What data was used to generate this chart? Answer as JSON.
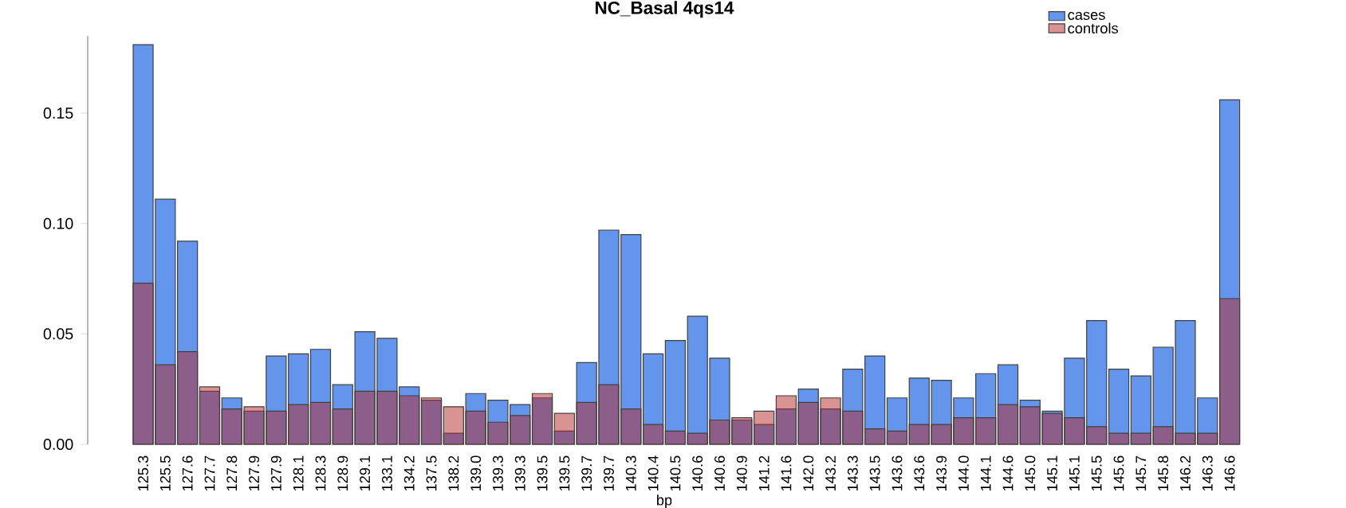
{
  "chart_data": {
    "type": "bar",
    "title": "NC_Basal 4qs14",
    "xlabel": "bp",
    "categories": [
      "125.3",
      "125.5",
      "127.6",
      "127.7",
      "127.8",
      "127.9",
      "127.9",
      "128.1",
      "128.3",
      "128.9",
      "129.1",
      "133.1",
      "134.2",
      "137.5",
      "138.2",
      "139.0",
      "139.3",
      "139.3",
      "139.5",
      "139.5",
      "139.7",
      "139.7",
      "140.3",
      "140.4",
      "140.5",
      "140.6",
      "140.6",
      "140.9",
      "141.2",
      "141.6",
      "142.0",
      "143.2",
      "143.3",
      "143.5",
      "143.6",
      "143.6",
      "143.9",
      "144.0",
      "144.1",
      "144.6",
      "145.0",
      "145.1",
      "145.1",
      "145.5",
      "145.6",
      "145.7",
      "145.8",
      "146.2",
      "146.3",
      "146.6"
    ],
    "series": [
      {
        "name": "cases",
        "color": "#6495ed",
        "values": [
          0.181,
          0.111,
          0.092,
          0.024,
          0.021,
          0.015,
          0.04,
          0.041,
          0.043,
          0.027,
          0.051,
          0.048,
          0.026,
          0.02,
          0.005,
          0.023,
          0.02,
          0.018,
          0.021,
          0.006,
          0.037,
          0.097,
          0.095,
          0.041,
          0.047,
          0.058,
          0.039,
          0.011,
          0.009,
          0.016,
          0.025,
          0.016,
          0.034,
          0.04,
          0.021,
          0.03,
          0.029,
          0.021,
          0.032,
          0.036,
          0.02,
          0.015,
          0.039,
          0.056,
          0.034,
          0.031,
          0.044,
          0.056,
          0.021,
          0.156
        ]
      },
      {
        "name": "controls",
        "color": "#b52828",
        "values": [
          0.073,
          0.036,
          0.042,
          0.026,
          0.016,
          0.017,
          0.015,
          0.018,
          0.019,
          0.016,
          0.024,
          0.024,
          0.022,
          0.021,
          0.017,
          0.015,
          0.01,
          0.013,
          0.023,
          0.014,
          0.019,
          0.027,
          0.016,
          0.009,
          0.006,
          0.005,
          0.011,
          0.012,
          0.015,
          0.022,
          0.019,
          0.021,
          0.015,
          0.007,
          0.006,
          0.009,
          0.009,
          0.012,
          0.012,
          0.018,
          0.017,
          0.014,
          0.012,
          0.008,
          0.005,
          0.005,
          0.008,
          0.005,
          0.005,
          0.066
        ]
      }
    ],
    "ylim": [
      0,
      0.185
    ],
    "yticks": [
      {
        "value": 0,
        "label": "0.00"
      },
      {
        "value": 0.05,
        "label": "0.05"
      },
      {
        "value": 0.1,
        "label": "0.10"
      },
      {
        "value": 0.15,
        "label": "0.15"
      }
    ],
    "legend": "top right"
  }
}
